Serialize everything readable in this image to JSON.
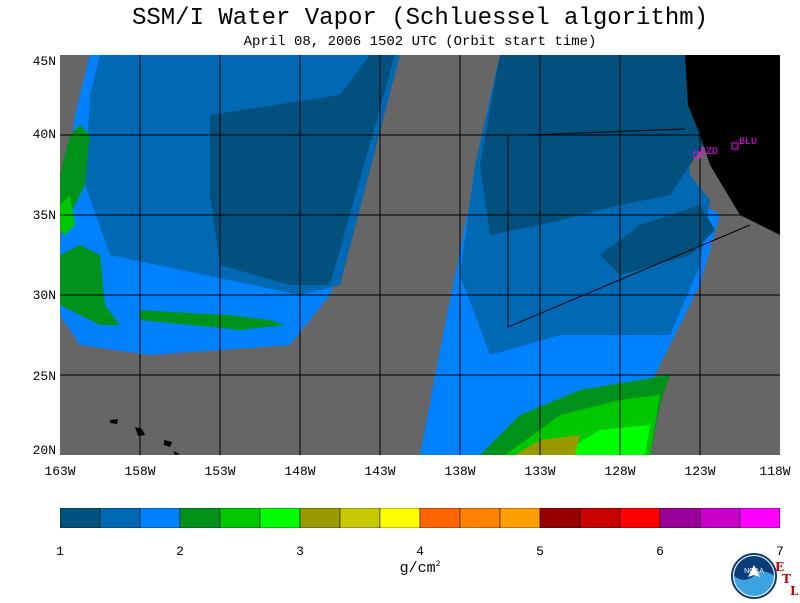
{
  "title": "SSM/I Water Vapor (Schluessel algorithm)",
  "subtitle": "April 08, 2006  1502 UTC  (Orbit start time)",
  "lat_labels": [
    "45N",
    "40N",
    "35N",
    "30N",
    "25N",
    "20N"
  ],
  "lon_labels": [
    "163W",
    "158W",
    "153W",
    "148W",
    "143W",
    "138W",
    "133W",
    "128W",
    "123W",
    "118W"
  ],
  "stations": [
    "CZD",
    "BLU"
  ],
  "colorbar": {
    "colors": [
      "#01507e",
      "#0168b4",
      "#0082ff",
      "#00921a",
      "#00c800",
      "#00ff00",
      "#999900",
      "#c8c800",
      "#ffff00",
      "#ff6400",
      "#ff8200",
      "#ff9e00",
      "#990000",
      "#c80000",
      "#ff0000",
      "#990099",
      "#c800c8",
      "#ff00ff"
    ],
    "tick_labels": [
      "1",
      "2",
      "3",
      "4",
      "5",
      "6",
      "7"
    ],
    "units_label": "g/cm",
    "units_exp": "2"
  },
  "colors": {
    "background": "#666666",
    "land": "#000000",
    "grid": "#000000",
    "station": "#ff00ff"
  },
  "logo_text": "NOAA",
  "etl_letters": [
    "E",
    "T",
    "L"
  ]
}
